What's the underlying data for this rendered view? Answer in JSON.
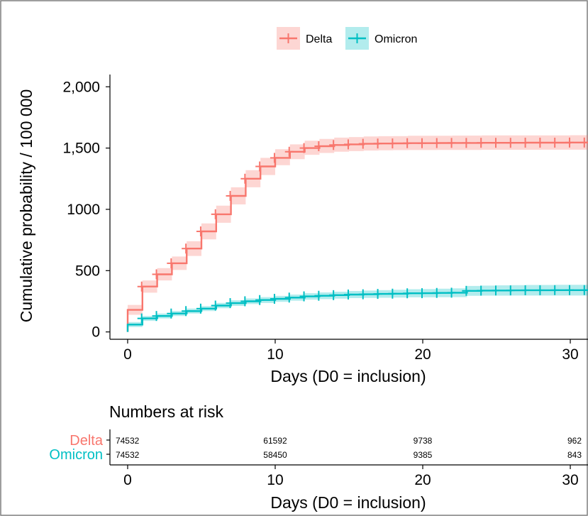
{
  "colors": {
    "delta": "#F8766D",
    "omicron": "#00BFC4",
    "delta_band": "#F8766D",
    "omicron_band": "#00BFC4",
    "axis": "#000000",
    "frame_border": "#7f7f7f"
  },
  "legend": {
    "position": "top",
    "items": [
      {
        "name": "Delta",
        "color": "#F8766D"
      },
      {
        "name": "Omicron",
        "color": "#00BFC4"
      }
    ]
  },
  "chart_data": {
    "type": "line",
    "subtype": "step",
    "xlabel": "Days (D0 = inclusion)",
    "ylabel": "Cumulative probability / 100 000",
    "xlim": [
      -1.2,
      31.2
    ],
    "ylim": [
      -60,
      2100
    ],
    "xticks": [
      0,
      10,
      20,
      30
    ],
    "xtick_labels": [
      "0",
      "10",
      "20",
      "30"
    ],
    "yticks": [
      0,
      500,
      1000,
      1500,
      2000
    ],
    "ytick_labels": [
      "0",
      "500",
      "1000",
      "1,500",
      "2,000"
    ],
    "grid": false,
    "series": [
      {
        "name": "Delta",
        "color": "#F8766D",
        "x": [
          0,
          1,
          2,
          3,
          4,
          5,
          6,
          7,
          8,
          9,
          10,
          11,
          12,
          13,
          14,
          15,
          16,
          17,
          18,
          19,
          20,
          21,
          22,
          23,
          24,
          25,
          26,
          27,
          28,
          29,
          30,
          31
        ],
        "y": [
          180,
          370,
          470,
          560,
          680,
          820,
          960,
          1110,
          1250,
          1350,
          1420,
          1470,
          1500,
          1515,
          1525,
          1530,
          1535,
          1537,
          1538,
          1540,
          1540,
          1541,
          1542,
          1542,
          1543,
          1543,
          1543,
          1544,
          1544,
          1544,
          1545,
          1545
        ],
        "ci_lower": [
          140,
          320,
          420,
          505,
          620,
          755,
          890,
          1040,
          1180,
          1280,
          1360,
          1410,
          1445,
          1460,
          1470,
          1475,
          1480,
          1482,
          1483,
          1484,
          1484,
          1485,
          1485,
          1485,
          1486,
          1486,
          1486,
          1486,
          1487,
          1487,
          1487,
          1487
        ],
        "ci_upper": [
          220,
          420,
          520,
          615,
          740,
          885,
          1030,
          1180,
          1320,
          1420,
          1490,
          1530,
          1560,
          1575,
          1585,
          1590,
          1595,
          1597,
          1598,
          1600,
          1600,
          1601,
          1602,
          1602,
          1603,
          1603,
          1603,
          1604,
          1604,
          1604,
          1605,
          1605
        ]
      },
      {
        "name": "Omicron",
        "color": "#00BFC4",
        "x": [
          0,
          1,
          2,
          3,
          4,
          5,
          6,
          7,
          8,
          9,
          10,
          11,
          12,
          13,
          14,
          15,
          16,
          17,
          18,
          19,
          20,
          21,
          22,
          23,
          24,
          25,
          26,
          27,
          28,
          29,
          30,
          31
        ],
        "y": [
          60,
          110,
          130,
          150,
          170,
          190,
          215,
          235,
          250,
          260,
          270,
          280,
          290,
          295,
          300,
          305,
          307,
          310,
          312,
          315,
          316,
          318,
          320,
          335,
          337,
          338,
          339,
          340,
          340,
          341,
          341,
          341
        ],
        "ci_lower": [
          40,
          90,
          110,
          130,
          150,
          170,
          193,
          212,
          227,
          236,
          246,
          255,
          264,
          268,
          272,
          276,
          277,
          279,
          280,
          282,
          282,
          283,
          284,
          295,
          296,
          296,
          297,
          297,
          297,
          297,
          297,
          297
        ],
        "ci_upper": [
          80,
          130,
          150,
          170,
          190,
          210,
          237,
          258,
          273,
          284,
          294,
          305,
          316,
          322,
          328,
          334,
          337,
          341,
          344,
          348,
          350,
          353,
          356,
          375,
          378,
          380,
          381,
          383,
          383,
          385,
          385,
          385
        ]
      }
    ],
    "risk_table": {
      "title": "Numbers at risk",
      "xlabel": "Days (D0 = inclusion)",
      "times": [
        0,
        10,
        20,
        30
      ],
      "groups": [
        {
          "name": "Delta",
          "color": "#F8766D",
          "values": [
            "74532",
            "61592",
            "9738",
            "962"
          ]
        },
        {
          "name": "Omicron",
          "color": "#00BFC4",
          "values": [
            "74532",
            "58450",
            "9385",
            "843"
          ]
        }
      ]
    }
  }
}
